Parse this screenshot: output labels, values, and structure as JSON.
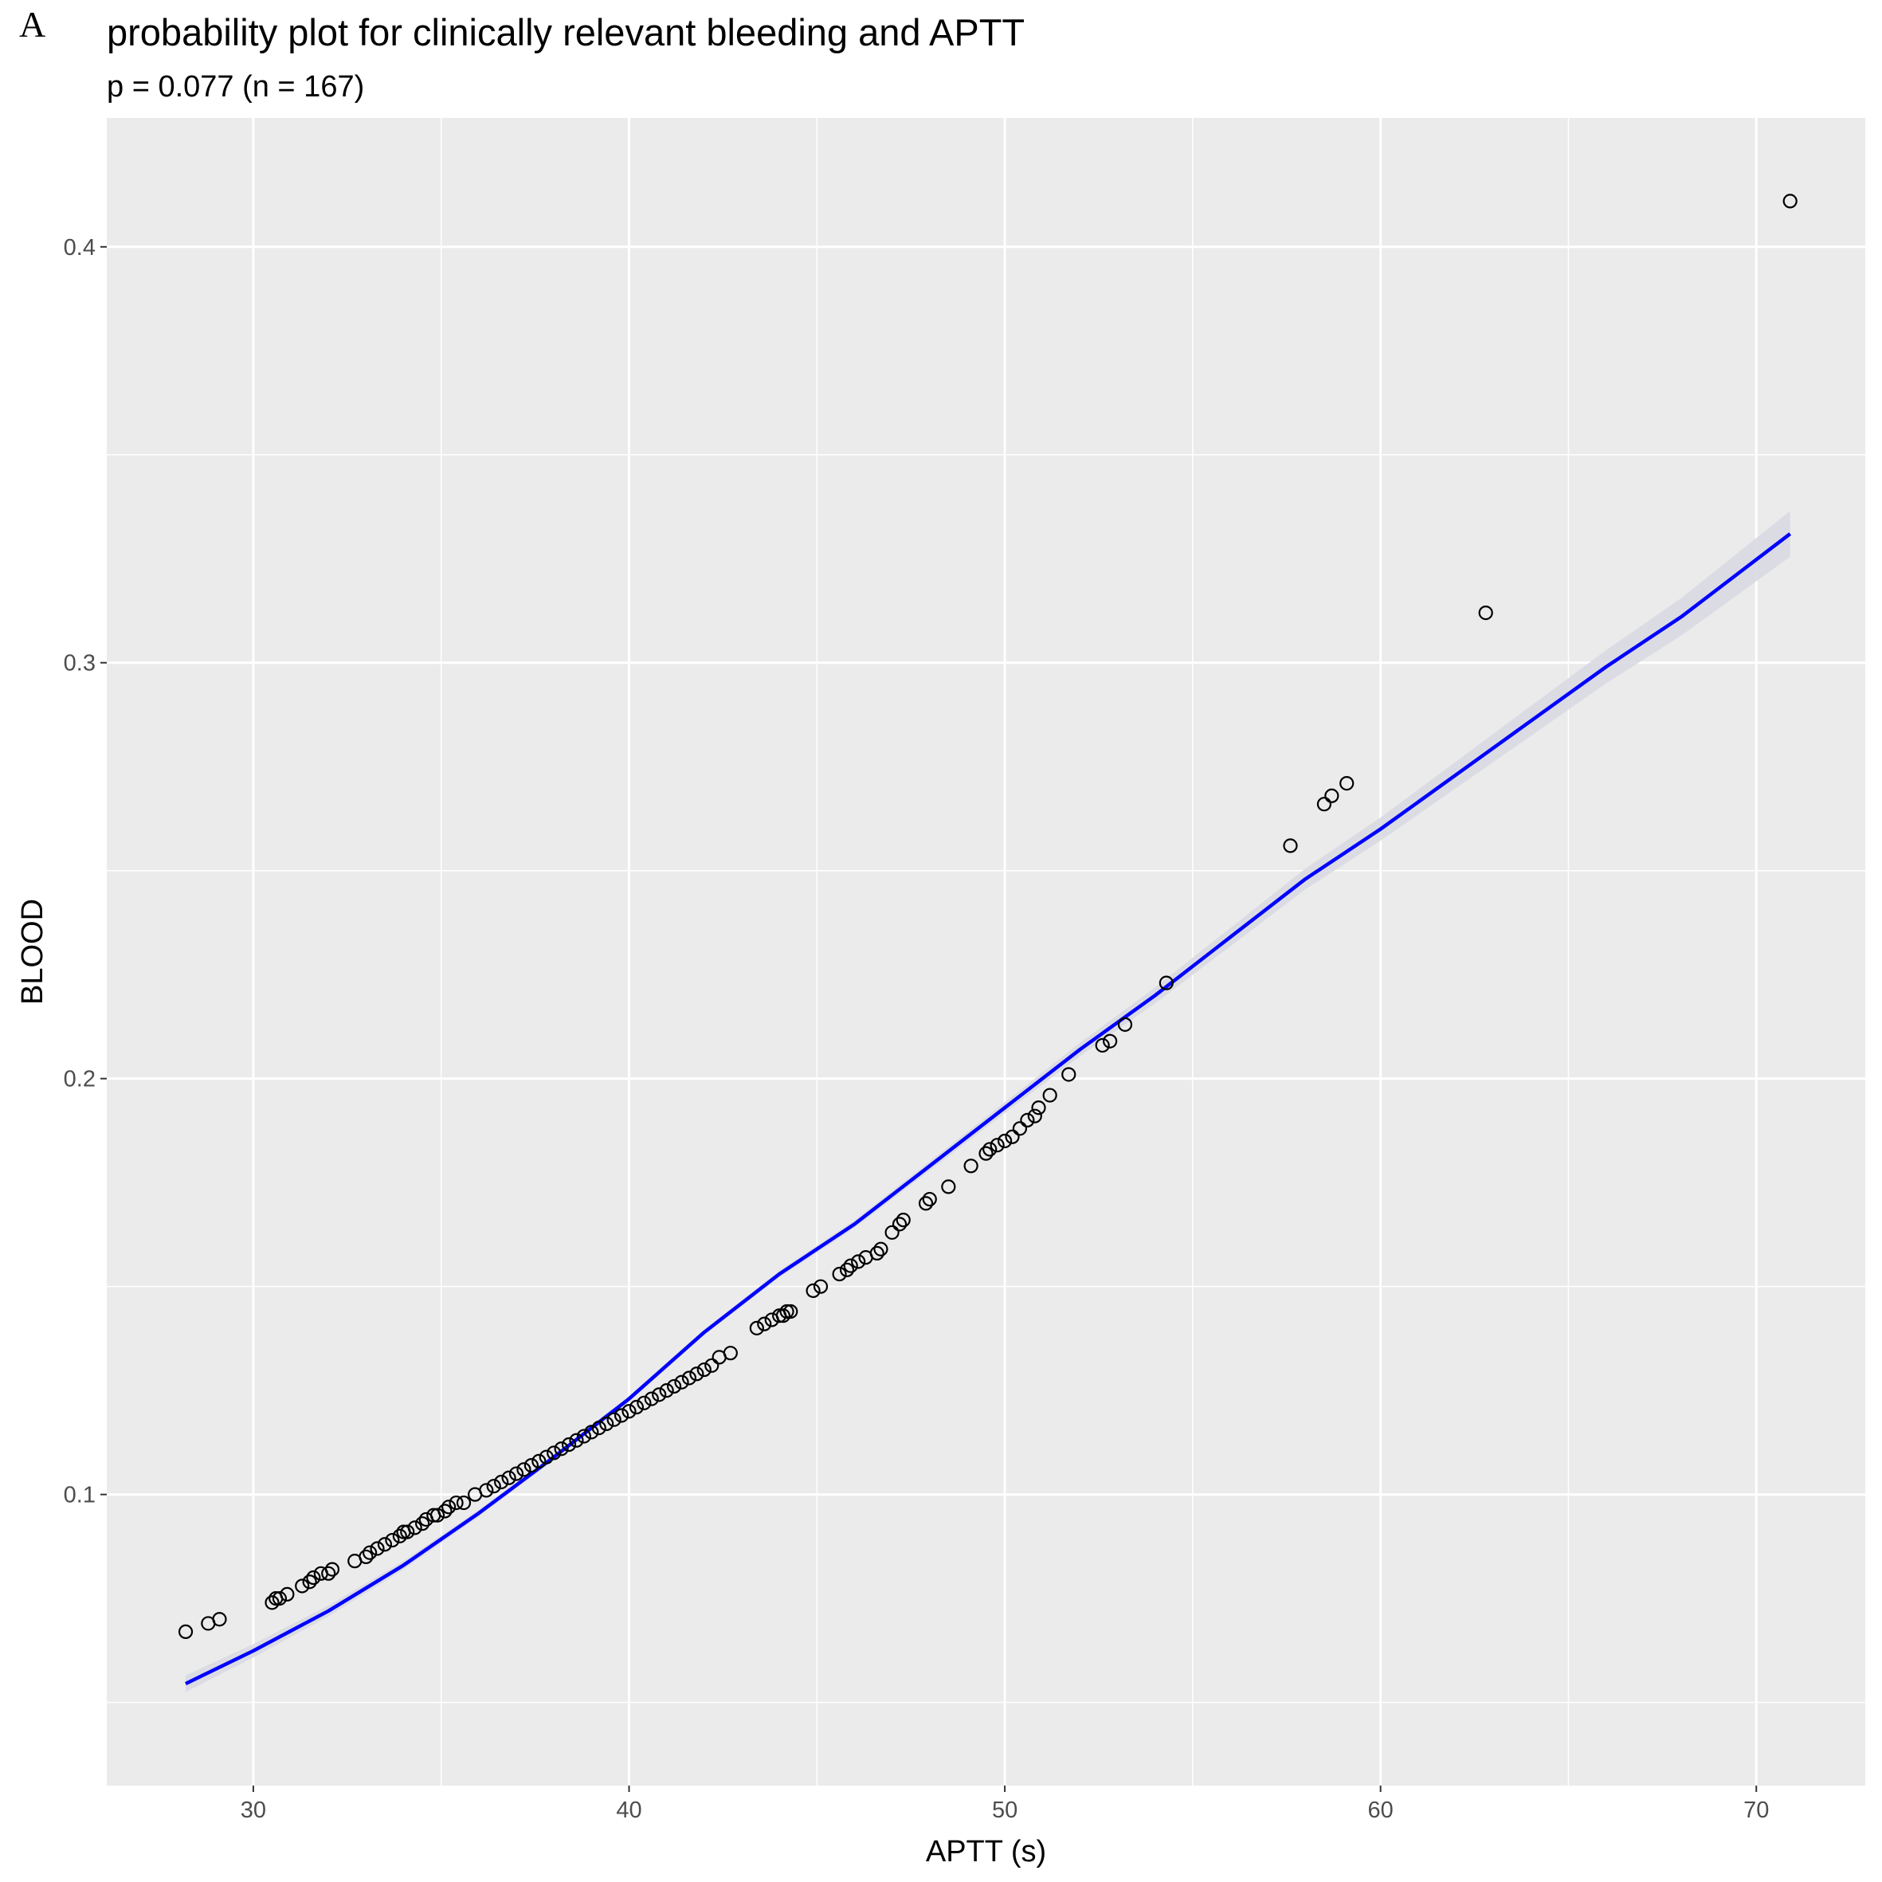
{
  "panel_label": "A",
  "chart_data": {
    "type": "scatter",
    "title": "probability plot for clinically relevant bleeding and APTT",
    "subtitle": "p = 0.077 (n = 167)",
    "xlabel": "APTT (s)",
    "ylabel": "BLOOD",
    "xlim": [
      26.1,
      72.9
    ],
    "ylim": [
      0.03,
      0.431
    ],
    "x_ticks": [
      30,
      40,
      50,
      60,
      70
    ],
    "x_minor_ticks": [
      35,
      45,
      55,
      65
    ],
    "y_ticks": [
      0.1,
      0.2,
      0.3,
      0.4
    ],
    "y_tick_labels": [
      "0.1",
      "0.2",
      "0.3",
      "0.4"
    ],
    "y_minor_ticks": [
      0.05,
      0.15,
      0.25,
      0.35
    ],
    "grid": true,
    "colors": {
      "panel_background": "#ebebeb",
      "gridline": "#ffffff",
      "point_stroke": "#000000",
      "fit_line": "#0000ff",
      "ribbon": "#d9d9e3"
    },
    "points": {
      "name": "observed",
      "x": [
        28.2,
        28.8,
        29.1,
        30.5,
        30.6,
        30.7,
        30.9,
        31.3,
        31.5,
        31.6,
        31.8,
        32.0,
        32.1,
        32.7,
        33.0,
        33.1,
        33.3,
        33.5,
        33.7,
        33.9,
        34.0,
        34.1,
        34.3,
        34.5,
        34.6,
        34.8,
        34.9,
        35.1,
        35.2,
        35.4,
        35.6,
        35.9,
        36.2,
        36.4,
        36.6,
        36.8,
        37.0,
        37.2,
        37.4,
        37.6,
        37.8,
        38.0,
        38.2,
        38.4,
        38.6,
        38.8,
        39.0,
        39.2,
        39.4,
        39.6,
        39.8,
        40.0,
        40.2,
        40.4,
        40.6,
        40.8,
        41.0,
        41.2,
        41.4,
        41.6,
        41.8,
        42.0,
        42.2,
        42.4,
        42.7,
        43.4,
        43.6,
        43.8,
        44.0,
        44.1,
        44.2,
        44.3,
        44.9,
        45.1,
        45.6,
        45.8,
        45.9,
        46.1,
        46.3,
        46.6,
        46.7,
        47.0,
        47.2,
        47.3,
        47.9,
        48.0,
        48.5,
        49.1,
        49.5,
        49.6,
        49.8,
        50.0,
        50.2,
        50.4,
        50.6,
        50.8,
        50.9,
        51.2,
        51.7,
        52.6,
        52.8,
        53.2,
        54.3,
        57.6,
        58.5,
        58.7,
        59.1,
        62.8,
        70.9
      ],
      "y": [
        0.067,
        0.069,
        0.07,
        0.074,
        0.075,
        0.075,
        0.076,
        0.078,
        0.079,
        0.08,
        0.081,
        0.081,
        0.082,
        0.084,
        0.085,
        0.086,
        0.087,
        0.088,
        0.089,
        0.09,
        0.091,
        0.091,
        0.092,
        0.093,
        0.094,
        0.095,
        0.095,
        0.096,
        0.097,
        0.098,
        0.098,
        0.1,
        0.101,
        0.102,
        0.103,
        0.104,
        0.105,
        0.106,
        0.107,
        0.108,
        0.109,
        0.11,
        0.111,
        0.112,
        0.113,
        0.114,
        0.115,
        0.116,
        0.117,
        0.118,
        0.119,
        0.12,
        0.121,
        0.122,
        0.123,
        0.124,
        0.125,
        0.126,
        0.127,
        0.128,
        0.129,
        0.13,
        0.131,
        0.133,
        0.134,
        0.14,
        0.141,
        0.142,
        0.143,
        0.143,
        0.144,
        0.144,
        0.149,
        0.15,
        0.153,
        0.154,
        0.155,
        0.156,
        0.157,
        0.158,
        0.159,
        0.163,
        0.165,
        0.166,
        0.17,
        0.171,
        0.174,
        0.179,
        0.182,
        0.183,
        0.184,
        0.185,
        0.186,
        0.188,
        0.19,
        0.191,
        0.193,
        0.196,
        0.201,
        0.208,
        0.209,
        0.213,
        0.223,
        0.256,
        0.266,
        0.268,
        0.271,
        0.312,
        0.411
      ]
    },
    "fit_line": {
      "name": "fitted",
      "x": [
        28.2,
        30.0,
        32.0,
        34.0,
        36.0,
        38.0,
        40.0,
        42.0,
        44.0,
        46.0,
        48.0,
        50.0,
        52.0,
        54.0,
        56.0,
        58.0,
        60.0,
        62.0,
        64.0,
        66.0,
        68.0,
        70.9
      ],
      "y": [
        0.0545,
        0.0624,
        0.072,
        0.083,
        0.0955,
        0.109,
        0.123,
        0.139,
        0.153,
        0.165,
        0.179,
        0.193,
        0.207,
        0.22,
        0.234,
        0.248,
        0.26,
        0.273,
        0.286,
        0.299,
        0.311,
        0.331
      ],
      "ci_lower": [
        0.0525,
        0.0608,
        0.0707,
        0.082,
        0.0947,
        0.1083,
        0.1223,
        0.1383,
        0.1522,
        0.1641,
        0.1779,
        0.1917,
        0.2054,
        0.2181,
        0.2318,
        0.2455,
        0.2572,
        0.2698,
        0.2824,
        0.295,
        0.3065,
        0.3255
      ],
      "ci_upper": [
        0.0565,
        0.064,
        0.0733,
        0.084,
        0.0963,
        0.1097,
        0.1237,
        0.1397,
        0.1538,
        0.1659,
        0.1801,
        0.1943,
        0.2086,
        0.2219,
        0.2362,
        0.2505,
        0.2628,
        0.2762,
        0.2896,
        0.303,
        0.3155,
        0.3365
      ]
    }
  }
}
